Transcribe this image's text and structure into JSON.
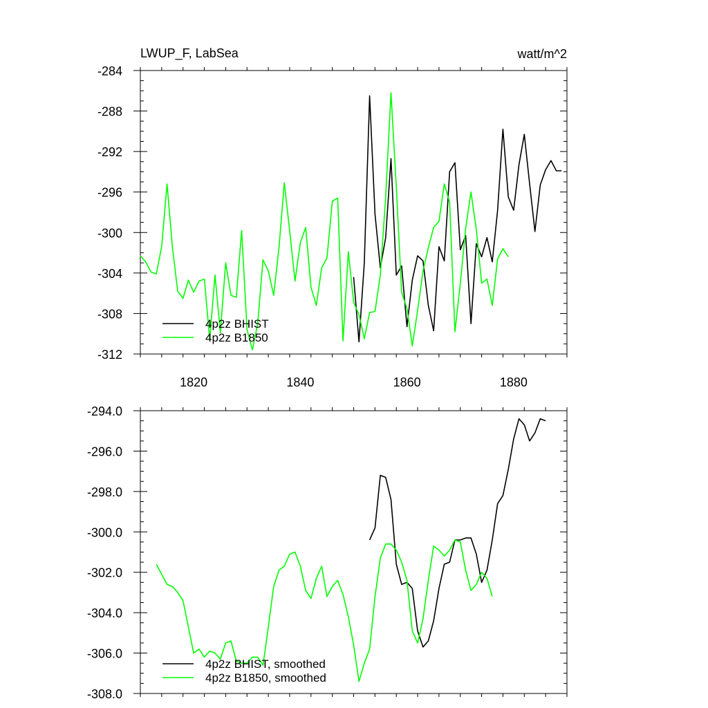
{
  "chart_data": [
    {
      "type": "line",
      "title": "LWUP_F, LabSea",
      "units": "watt/m^2",
      "xlabel": "",
      "ylabel": "",
      "xlim": [
        1810,
        1890
      ],
      "ylim": [
        -312,
        -284
      ],
      "xticks": [
        1820,
        1840,
        1860,
        1880
      ],
      "xtick_labels": [
        "1820",
        "1840",
        "1860",
        "1880"
      ],
      "yticks": [
        -312,
        -308,
        -304,
        -300,
        -296,
        -292,
        -288,
        -284
      ],
      "ytick_labels": [
        "-312",
        "-308",
        "-304",
        "-300",
        "-296",
        "-292",
        "-288",
        "-284"
      ],
      "grid": false,
      "legend_position": "bottom-left",
      "series": [
        {
          "name": "4p2z BHIST",
          "color": "#000000",
          "x": [
            1850,
            1851,
            1852,
            1853,
            1854,
            1855,
            1856,
            1857,
            1858,
            1859,
            1860,
            1861,
            1862,
            1863,
            1864,
            1865,
            1866,
            1867,
            1868,
            1869,
            1870,
            1871,
            1872,
            1873,
            1874,
            1875,
            1876,
            1877,
            1878,
            1879,
            1880,
            1881,
            1882,
            1883,
            1884,
            1885,
            1886,
            1887,
            1888,
            1889
          ],
          "values": [
            -304.4,
            -310.8,
            -303.0,
            -286.5,
            -298.2,
            -303.5,
            -300.5,
            -292.7,
            -304.2,
            -303.3,
            -309.3,
            -304.7,
            -302.3,
            -302.8,
            -307.2,
            -309.7,
            -301.4,
            -302.8,
            -294.0,
            -293.1,
            -301.7,
            -300.3,
            -309.0,
            -301.1,
            -302.4,
            -300.5,
            -302.9,
            -297.8,
            -289.8,
            -296.5,
            -297.8,
            -293.3,
            -290.3,
            -295.2,
            -299.9,
            -295.3,
            -293.8,
            -292.9,
            -293.9,
            -293.9
          ]
        },
        {
          "name": "4p2z B1850",
          "color": "#00ff00",
          "x": [
            1810,
            1811,
            1812,
            1813,
            1814,
            1815,
            1816,
            1817,
            1818,
            1819,
            1820,
            1821,
            1822,
            1823,
            1824,
            1825,
            1826,
            1827,
            1828,
            1829,
            1830,
            1831,
            1832,
            1833,
            1834,
            1835,
            1836,
            1837,
            1838,
            1839,
            1840,
            1841,
            1842,
            1843,
            1844,
            1845,
            1846,
            1847,
            1848,
            1849,
            1850,
            1851,
            1852,
            1853,
            1854,
            1855,
            1856,
            1857,
            1858,
            1859,
            1860,
            1861,
            1862,
            1863,
            1864,
            1865,
            1866,
            1867,
            1868,
            1869,
            1870,
            1871,
            1872,
            1873,
            1874,
            1875,
            1876,
            1877,
            1878,
            1879
          ],
          "values": [
            -302.3,
            -302.9,
            -303.9,
            -304.1,
            -301.4,
            -295.2,
            -301.4,
            -305.8,
            -306.5,
            -304.7,
            -305.9,
            -304.8,
            -304.6,
            -310.6,
            -304.2,
            -309.9,
            -303.0,
            -306.2,
            -306.4,
            -299.8,
            -309.6,
            -311.6,
            -309.0,
            -302.7,
            -303.8,
            -306.2,
            -301.5,
            -295.1,
            -299.8,
            -304.8,
            -301.0,
            -299.5,
            -305.4,
            -307.2,
            -303.5,
            -302.5,
            -296.9,
            -296.6,
            -310.7,
            -301.9,
            -306.9,
            -308.1,
            -310.5,
            -307.9,
            -307.8,
            -304.2,
            -296.5,
            -286.2,
            -295.5,
            -305.9,
            -307.5,
            -311.2,
            -307.7,
            -303.8,
            -301.5,
            -299.5,
            -298.9,
            -295.2,
            -297.0,
            -309.8,
            -305.0,
            -299.6,
            -296.0,
            -299.7,
            -305.0,
            -304.6,
            -307.2,
            -302.6,
            -301.6,
            -302.4
          ]
        }
      ]
    },
    {
      "type": "line",
      "title": "",
      "xlabel": "",
      "ylabel": "",
      "xlim": [
        1810,
        1890
      ],
      "ylim": [
        -308,
        -294
      ],
      "xticks": [
        1820,
        1840,
        1860,
        1880
      ],
      "xtick_labels": [
        "",
        "",
        "",
        ""
      ],
      "yticks": [
        -308,
        -306,
        -304,
        -302,
        -300,
        -298,
        -296,
        -294
      ],
      "ytick_labels": [
        "-308.0",
        "-306.0",
        "-304.0",
        "-302.0",
        "-300.0",
        "-298.0",
        "-296.0",
        "-294.0"
      ],
      "grid": false,
      "legend_position": "bottom-left",
      "series": [
        {
          "name": "4p2z BHIST, smoothed",
          "color": "#000000",
          "x": [
            1853,
            1854,
            1855,
            1856,
            1857,
            1858,
            1859,
            1860,
            1861,
            1862,
            1863,
            1864,
            1865,
            1866,
            1867,
            1868,
            1869,
            1870,
            1871,
            1872,
            1873,
            1874,
            1875,
            1876,
            1877,
            1878,
            1879,
            1880,
            1881,
            1882,
            1883,
            1884,
            1885,
            1886
          ],
          "values": [
            -300.4,
            -299.8,
            -297.2,
            -297.3,
            -298.4,
            -301.6,
            -302.6,
            -302.5,
            -302.8,
            -304.9,
            -305.7,
            -305.4,
            -304.4,
            -302.8,
            -301.6,
            -301.5,
            -300.4,
            -300.4,
            -300.3,
            -300.3,
            -301.1,
            -302.5,
            -301.9,
            -300.4,
            -298.6,
            -298.2,
            -296.9,
            -295.4,
            -294.4,
            -294.7,
            -295.5,
            -295.1,
            -294.4,
            -294.5
          ]
        },
        {
          "name": "4p2z B1850, smoothed",
          "color": "#00ff00",
          "x": [
            1813,
            1814,
            1815,
            1816,
            1817,
            1818,
            1819,
            1820,
            1821,
            1822,
            1823,
            1824,
            1825,
            1826,
            1827,
            1828,
            1829,
            1830,
            1831,
            1832,
            1833,
            1834,
            1835,
            1836,
            1837,
            1838,
            1839,
            1840,
            1841,
            1842,
            1843,
            1844,
            1845,
            1846,
            1847,
            1848,
            1849,
            1850,
            1851,
            1852,
            1853,
            1854,
            1855,
            1856,
            1857,
            1858,
            1859,
            1860,
            1861,
            1862,
            1863,
            1864,
            1865,
            1866,
            1867,
            1868,
            1869,
            1870,
            1871,
            1872,
            1873,
            1874,
            1875,
            1876
          ],
          "values": [
            -301.6,
            -302.1,
            -302.6,
            -302.7,
            -303.0,
            -303.4,
            -304.7,
            -306.0,
            -305.8,
            -306.2,
            -305.9,
            -306.0,
            -306.3,
            -305.5,
            -305.4,
            -306.4,
            -306.5,
            -306.5,
            -306.2,
            -306.2,
            -306.6,
            -304.7,
            -302.7,
            -301.9,
            -301.7,
            -301.1,
            -301.0,
            -301.7,
            -302.9,
            -303.3,
            -302.3,
            -301.7,
            -303.2,
            -302.7,
            -302.4,
            -303.1,
            -304.2,
            -305.6,
            -307.4,
            -306.5,
            -305.8,
            -303.2,
            -301.3,
            -300.6,
            -300.6,
            -300.9,
            -301.5,
            -302.4,
            -304.9,
            -305.5,
            -304.3,
            -302.4,
            -300.7,
            -300.9,
            -301.2,
            -300.9,
            -300.4,
            -300.5,
            -301.9,
            -302.9,
            -302.6,
            -302.0,
            -302.3,
            -303.2
          ]
        }
      ]
    }
  ]
}
